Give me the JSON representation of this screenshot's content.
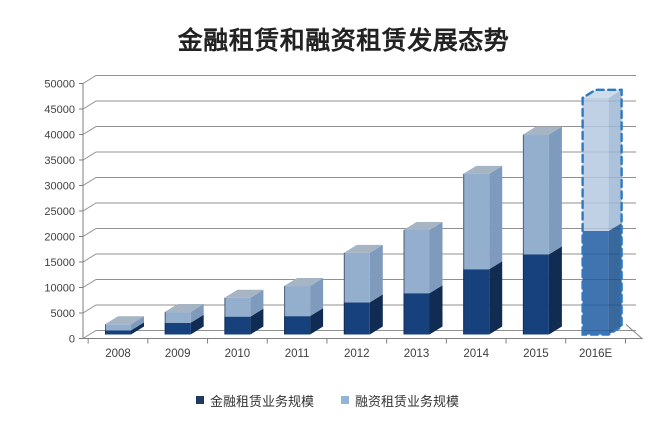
{
  "title": "金融租赁和融资租赁发展态势",
  "colors": {
    "background": "#FFFFFF",
    "title": "#222222",
    "grid": "#909090",
    "axis": "#7F7F7F",
    "tick_label": "#3F3F3F",
    "legend_text": "#333333"
  },
  "legend": {
    "items": [
      {
        "label": "金融租赁业务规模",
        "color": "#1F3A64"
      },
      {
        "label": "融资租赁业务规模",
        "color": "#95B3D7"
      }
    ]
  },
  "chart_data": {
    "type": "bar",
    "variant": "3d-stacked-column",
    "title": "金融租赁和融资租赁发展态势",
    "categories": [
      "2008",
      "2009",
      "2010",
      "2011",
      "2012",
      "2013",
      "2014",
      "2015",
      "2016E"
    ],
    "series": [
      {
        "name": "金融租赁业务规模",
        "color": "#17417C",
        "side_color": "#102C52",
        "values": [
          800,
          2300,
          3500,
          3600,
          6300,
          8100,
          12800,
          15700,
          20300
        ]
      },
      {
        "name": "融资租赁业务规模",
        "color": "#94AFCE",
        "side_color": "#7E9ABC",
        "top_color": "#A6B4C3",
        "values": [
          1200,
          2100,
          3700,
          5900,
          9700,
          12400,
          18700,
          23500,
          26100
        ]
      }
    ],
    "totals": [
      2000,
      4400,
      7200,
      9500,
      16000,
      20500,
      31500,
      39200,
      46400
    ],
    "ylim": [
      0,
      50000
    ],
    "yticks": [
      0,
      5000,
      10000,
      15000,
      20000,
      25000,
      30000,
      35000,
      40000,
      45000,
      50000
    ],
    "xlabel": "",
    "ylabel": "",
    "grid": true,
    "legend_position": "bottom",
    "forecast": {
      "category": "2016E",
      "style": "dashed-outline",
      "outline_color": "#2E79C0",
      "dark_fill": "#1D5CA2",
      "light_fill": "#B5C9E1",
      "top_fill": "#C6D5E7",
      "dark_side": "#164E8C",
      "light_side": "#9DB6D4"
    }
  }
}
